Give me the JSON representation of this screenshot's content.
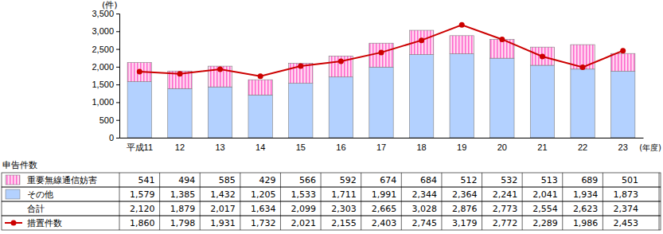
{
  "chart_data": {
    "type": "bar",
    "stacked": true,
    "grid": false,
    "data_labels": false,
    "y_label": "(件)",
    "x_label": "(年度)",
    "table_title": "申告件数",
    "total_label": "合計",
    "categories": [
      "平成11",
      "12",
      "13",
      "14",
      "15",
      "16",
      "17",
      "18",
      "19",
      "20",
      "21",
      "22",
      "23"
    ],
    "ylim": [
      0,
      3500
    ],
    "yticks": [
      0,
      500,
      {
        "value": 1000,
        "label": "1,000"
      },
      {
        "value": 1500,
        "label": "1,500"
      },
      {
        "value": 2000,
        "label": "2,000"
      },
      {
        "value": 2500,
        "label": "2,500"
      },
      {
        "value": 3000,
        "label": "3,000"
      },
      {
        "value": 3500,
        "label": "3,500"
      }
    ],
    "series": [
      {
        "name": "重要無線通信妨害",
        "type": "bar",
        "color": "#ff66cc",
        "values": [
          541,
          494,
          585,
          429,
          566,
          592,
          674,
          684,
          512,
          532,
          513,
          689,
          501
        ],
        "value_labels": [
          "541",
          "494",
          "585",
          "429",
          "566",
          "592",
          "674",
          "684",
          "512",
          "532",
          "513",
          "689",
          "501"
        ]
      },
      {
        "name": "その他",
        "type": "bar",
        "color": "#b3d1ff",
        "values": [
          1579,
          1385,
          1432,
          1205,
          1533,
          1711,
          1991,
          2344,
          2364,
          2241,
          2041,
          1934,
          1873
        ],
        "value_labels": [
          "1,579",
          "1,385",
          "1,432",
          "1,205",
          "1,533",
          "1,711",
          "1,991",
          "2,344",
          "2,364",
          "2,241",
          "2,041",
          "1,934",
          "1,873"
        ]
      },
      {
        "name": "措置件数",
        "type": "line",
        "color": "#cc0000",
        "marker": "circle",
        "values": [
          1860,
          1798,
          1931,
          1732,
          2021,
          2155,
          2403,
          2745,
          3179,
          2772,
          2289,
          1986,
          2453
        ],
        "value_labels": [
          "1,860",
          "1,798",
          "1,931",
          "1,732",
          "2,021",
          "2,155",
          "2,403",
          "2,745",
          "3,179",
          "2,772",
          "2,289",
          "1,986",
          "2,453"
        ]
      }
    ],
    "totals": [
      "2,120",
      "1,879",
      "2,017",
      "1,634",
      "2,099",
      "2,303",
      "2,665",
      "3,028",
      "2,876",
      "2,773",
      "2,554",
      "2,623",
      "2,374"
    ]
  }
}
